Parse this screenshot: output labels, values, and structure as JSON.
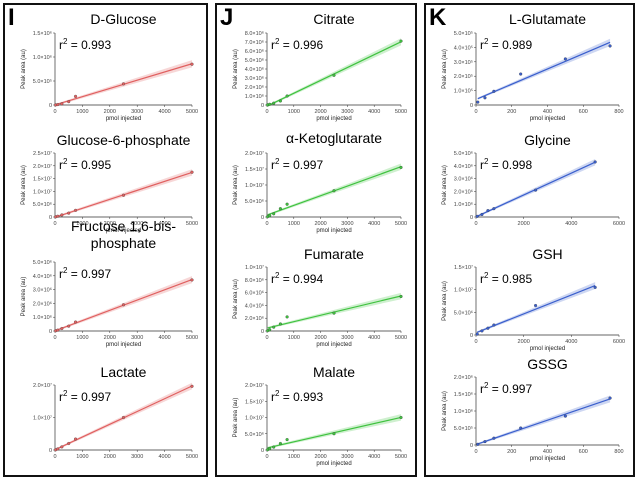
{
  "figure": {
    "panels": [
      {
        "letter": "I"
      },
      {
        "letter": "J"
      },
      {
        "letter": "K"
      }
    ],
    "colors": {
      "I": "#e06060",
      "J": "#3fc23f",
      "K": "#3a5fcd",
      "frame": "#111111"
    }
  },
  "chart_data": [
    {
      "panel": "I",
      "type": "scatter",
      "title": "D-Glucose",
      "r2_label": "r",
      "r2_value": " = 0.993",
      "xlabel": "pmol injected",
      "ylabel": "Peak area (au)",
      "xlim": [
        0,
        5000
      ],
      "ylim": [
        0,
        1500000
      ],
      "xticks": [
        "0",
        "1000",
        "2000",
        "3000",
        "4000",
        "5000"
      ],
      "yticks": [
        "0",
        "5.0×10⁵",
        "1.0×10⁶",
        "1.5×10⁶"
      ],
      "x": [
        25,
        100,
        250,
        500,
        750,
        2500,
        5000
      ],
      "y": [
        3000,
        9000,
        25000,
        70000,
        180000,
        440000,
        850000
      ]
    },
    {
      "panel": "I",
      "type": "scatter",
      "title": "Glucose-6-phosphate",
      "r2_label": "r",
      "r2_value": " = 0.995",
      "xlabel": "pmol injected",
      "ylabel": "Peak area (au)",
      "xlim": [
        0,
        5000
      ],
      "ylim": [
        0,
        25000000
      ],
      "xticks": [
        "0",
        "1000",
        "2000",
        "3000",
        "4000",
        "5000"
      ],
      "yticks": [
        "0",
        "5.0×10⁶",
        "1.0×10⁷",
        "1.5×10⁷",
        "2.0×10⁷",
        "2.5×10⁷"
      ],
      "x": [
        25,
        100,
        250,
        500,
        750,
        2500,
        5000
      ],
      "y": [
        80000,
        300000,
        800000,
        1500000,
        2600000,
        8500000,
        17500000
      ]
    },
    {
      "panel": "I",
      "type": "scatter",
      "title": "Fructose 1,6-bis-phosphate",
      "r2_label": "r",
      "r2_value": " = 0.997",
      "xlabel": "pmol injected",
      "ylabel": "Peak area (au)",
      "xlim": [
        0,
        5000
      ],
      "ylim": [
        0,
        5000000
      ],
      "xticks": [
        "0",
        "1000",
        "2000",
        "3000",
        "4000",
        "5000"
      ],
      "yticks": [
        "0",
        "1.0×10⁶",
        "2.0×10⁶",
        "3.0×10⁶",
        "4.0×10⁶",
        "5.0×10⁶"
      ],
      "x": [
        25,
        100,
        250,
        500,
        750,
        2500,
        5000
      ],
      "y": [
        20000,
        60000,
        180000,
        350000,
        650000,
        1900000,
        3700000
      ]
    },
    {
      "panel": "I",
      "type": "scatter",
      "title": "Lactate",
      "r2_label": "r",
      "r2_value": " = 0.997",
      "xlabel": "",
      "ylabel": "",
      "xlim": [
        0,
        5000
      ],
      "ylim": [
        0,
        25000000
      ],
      "xticks": [
        "0",
        "1000",
        "2000",
        "3000",
        "4000",
        "5000"
      ],
      "yticks": [
        "0",
        "1.0×10⁷",
        "2.0×10⁷"
      ],
      "x": [
        25,
        100,
        250,
        500,
        750,
        2500,
        5000
      ],
      "y": [
        100000,
        400000,
        1200000,
        2500000,
        4200000,
        12500000,
        24500000
      ]
    },
    {
      "panel": "J",
      "type": "scatter",
      "title": "Citrate",
      "r2_label": "r",
      "r2_value": " = 0.996",
      "xlabel": "pmol injected",
      "ylabel": "Peak area (au)",
      "xlim": [
        0,
        5000
      ],
      "ylim": [
        0,
        8000000
      ],
      "xticks": [
        "0",
        "1000",
        "2000",
        "3000",
        "4000",
        "5000"
      ],
      "yticks": [
        "0",
        "1.0×10⁶",
        "2.0×10⁶",
        "3.0×10⁶",
        "4.0×10⁶",
        "5.0×10⁶",
        "6.0×10⁶",
        "7.0×10⁶",
        "8.0×10⁶"
      ],
      "x": [
        25,
        100,
        250,
        500,
        750,
        2500,
        5000
      ],
      "y": [
        20000,
        80000,
        200000,
        450000,
        1000000,
        3300000,
        7100000
      ]
    },
    {
      "panel": "J",
      "type": "scatter",
      "title": "α-Ketoglutarate",
      "r2_label": "r",
      "r2_value": " = 0.997",
      "xlabel": "pmol injected",
      "ylabel": "Peak area (au)",
      "xlim": [
        0,
        5000
      ],
      "ylim": [
        0,
        20000000
      ],
      "xticks": [
        "0",
        "1000",
        "2000",
        "3000",
        "4000",
        "5000"
      ],
      "yticks": [
        "0",
        "5.0×10⁶",
        "1.0×10⁷",
        "1.5×10⁷",
        "2.0×10⁷"
      ],
      "x": [
        25,
        100,
        250,
        500,
        750,
        2500,
        5000
      ],
      "y": [
        100000,
        400000,
        1000000,
        2600000,
        4000000,
        8200000,
        15500000
      ]
    },
    {
      "panel": "J",
      "type": "scatter",
      "title": "Fumarate",
      "r2_label": "r",
      "r2_value": " = 0.994",
      "xlabel": "pmol injected",
      "ylabel": "Peak area (au)",
      "xlim": [
        0,
        5000
      ],
      "ylim": [
        0,
        10000000
      ],
      "xticks": [
        "0",
        "1000",
        "2000",
        "3000",
        "4000",
        "5000"
      ],
      "yticks": [
        "0",
        "2.0×10⁶",
        "4.0×10⁶",
        "6.0×10⁶",
        "8.0×10⁶",
        "1.0×10⁷"
      ],
      "x": [
        25,
        100,
        250,
        500,
        750,
        2500,
        5000
      ],
      "y": [
        50000,
        200000,
        600000,
        1100000,
        2200000,
        2800000,
        5400000
      ]
    },
    {
      "panel": "J",
      "type": "scatter",
      "title": "Malate",
      "r2_label": "r",
      "r2_value": " = 0.993",
      "xlabel": "pmol injected",
      "ylabel": "Peak area (au)",
      "xlim": [
        0,
        5000
      ],
      "ylim": [
        0,
        20000000
      ],
      "xticks": [
        "0",
        "1000",
        "2000",
        "3000",
        "4000",
        "5000"
      ],
      "yticks": [
        "0",
        "5.0×10⁶",
        "1.0×10⁷",
        "1.5×10⁷",
        "2.0×10⁷"
      ],
      "x": [
        25,
        100,
        250,
        500,
        750,
        2500,
        5000
      ],
      "y": [
        100000,
        400000,
        900000,
        2000000,
        3200000,
        5000000,
        10000000
      ]
    },
    {
      "panel": "K",
      "type": "scatter",
      "title": "L-Glutamate",
      "r2_label": "r",
      "r2_value": " = 0.989",
      "xlabel": "pmol injected",
      "ylabel": "Peak area (au)",
      "xlim": [
        0,
        800
      ],
      "ylim": [
        0,
        500000
      ],
      "xticks": [
        "0",
        "200",
        "400",
        "600",
        "800"
      ],
      "yticks": [
        "0",
        "1.0×10⁵",
        "2.0×10⁵",
        "3.0×10⁵",
        "4.0×10⁵",
        "5.0×10⁵"
      ],
      "x": [
        10,
        50,
        100,
        250,
        500,
        750
      ],
      "y": [
        20000,
        50000,
        95000,
        215000,
        320000,
        410000
      ]
    },
    {
      "panel": "K",
      "type": "scatter",
      "title": "Glycine",
      "r2_label": "r",
      "r2_value": " = 0.998",
      "xlabel": "",
      "ylabel": "Peak area (au)",
      "xlim": [
        0,
        6000
      ],
      "ylim": [
        0,
        5000000
      ],
      "xticks": [
        "0",
        "2000",
        "4000",
        "6000"
      ],
      "yticks": [
        "0",
        "1.0×10⁶",
        "2.0×10⁶",
        "3.0×10⁶",
        "4.0×10⁶",
        "5.0×10⁶"
      ],
      "x": [
        50,
        250,
        500,
        750,
        2500,
        5000
      ],
      "y": [
        50000,
        200000,
        500000,
        650000,
        2100000,
        4300000
      ]
    },
    {
      "panel": "K",
      "type": "scatter",
      "title": "GSH",
      "r2_label": "r",
      "r2_value": " = 0.985",
      "xlabel": "pmol injected",
      "ylabel": "Peak area (au)",
      "xlim": [
        0,
        6000
      ],
      "ylim": [
        0,
        15000000
      ],
      "xticks": [
        "0",
        "2000",
        "4000",
        "6000"
      ],
      "yticks": [
        "0",
        "5.0×10⁶",
        "1.0×10⁷",
        "1.5×10⁷"
      ],
      "x": [
        50,
        250,
        500,
        750,
        2500,
        5000
      ],
      "y": [
        200000,
        900000,
        1500000,
        2200000,
        6500000,
        10500000
      ]
    },
    {
      "panel": "K",
      "type": "scatter",
      "title": "GSSG",
      "r2_label": "r",
      "r2_value": " = 0.997",
      "xlabel": "pmol injected",
      "ylabel": "Peak area (au)",
      "xlim": [
        0,
        800
      ],
      "ylim": [
        0,
        2000000
      ],
      "xticks": [
        "0",
        "200",
        "400",
        "600",
        "800"
      ],
      "yticks": [
        "0",
        "5.0×10⁵",
        "1.0×10⁶",
        "1.5×10⁶",
        "2.0×10⁶"
      ],
      "x": [
        10,
        50,
        100,
        250,
        500,
        750
      ],
      "y": [
        20000,
        100000,
        200000,
        500000,
        850000,
        1380000
      ]
    }
  ]
}
